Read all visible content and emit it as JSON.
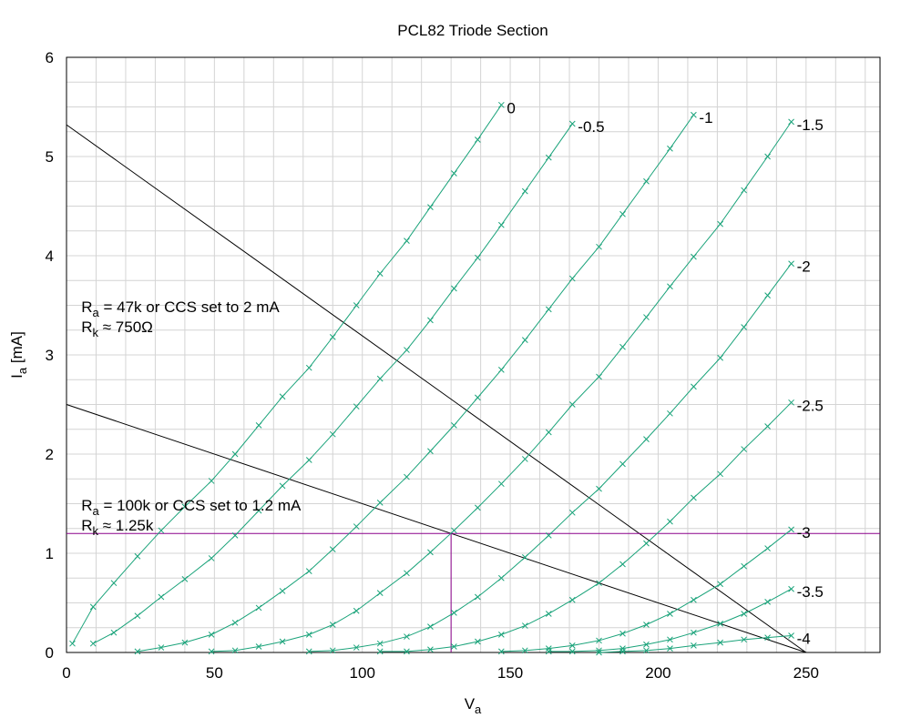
{
  "chart_data": {
    "type": "line",
    "title": "PCL82 Triode Section",
    "xlabel": "V",
    "xlabel_sub": "a",
    "ylabel": "I",
    "ylabel_sub": "a",
    "ylabel_suffix": " [mA]",
    "xlim": [
      0,
      275
    ],
    "ylim": [
      0,
      6
    ],
    "xticks": [
      0,
      50,
      100,
      150,
      200,
      250
    ],
    "yticks": [
      0,
      1,
      2,
      3,
      4,
      5,
      6
    ],
    "grid": true,
    "curve_color": "#1aa37a",
    "series": [
      {
        "name": "0",
        "points": [
          [
            2,
            0.09
          ],
          [
            9,
            0.46
          ],
          [
            16,
            0.7
          ],
          [
            24,
            0.97
          ],
          [
            32,
            1.23
          ],
          [
            40,
            1.47
          ],
          [
            49,
            1.73
          ],
          [
            57,
            2.0
          ],
          [
            65,
            2.29
          ],
          [
            73,
            2.58
          ],
          [
            82,
            2.87
          ],
          [
            90,
            3.18
          ],
          [
            98,
            3.5
          ],
          [
            106,
            3.82
          ],
          [
            115,
            4.15
          ],
          [
            123,
            4.49
          ],
          [
            131,
            4.83
          ],
          [
            139,
            5.17
          ],
          [
            147,
            5.52
          ]
        ]
      },
      {
        "name": "-0.5",
        "points": [
          [
            9,
            0.09
          ],
          [
            16,
            0.2
          ],
          [
            24,
            0.37
          ],
          [
            32,
            0.56
          ],
          [
            40,
            0.74
          ],
          [
            49,
            0.95
          ],
          [
            57,
            1.18
          ],
          [
            65,
            1.43
          ],
          [
            73,
            1.68
          ],
          [
            82,
            1.94
          ],
          [
            90,
            2.2
          ],
          [
            98,
            2.48
          ],
          [
            106,
            2.76
          ],
          [
            115,
            3.05
          ],
          [
            123,
            3.35
          ],
          [
            131,
            3.67
          ],
          [
            139,
            3.98
          ],
          [
            147,
            4.31
          ],
          [
            155,
            4.65
          ],
          [
            163,
            4.99
          ],
          [
            171,
            5.33
          ]
        ]
      },
      {
        "name": "-1",
        "points": [
          [
            24,
            0.01
          ],
          [
            32,
            0.05
          ],
          [
            40,
            0.1
          ],
          [
            49,
            0.18
          ],
          [
            57,
            0.3
          ],
          [
            65,
            0.45
          ],
          [
            73,
            0.62
          ],
          [
            82,
            0.82
          ],
          [
            90,
            1.04
          ],
          [
            98,
            1.27
          ],
          [
            106,
            1.51
          ],
          [
            115,
            1.77
          ],
          [
            123,
            2.03
          ],
          [
            131,
            2.29
          ],
          [
            139,
            2.57
          ],
          [
            147,
            2.85
          ],
          [
            155,
            3.15
          ],
          [
            163,
            3.46
          ],
          [
            171,
            3.77
          ],
          [
            180,
            4.09
          ],
          [
            188,
            4.42
          ],
          [
            196,
            4.75
          ],
          [
            204,
            5.08
          ],
          [
            212,
            5.42
          ]
        ]
      },
      {
        "name": "-1.5",
        "points": [
          [
            49,
            0.01
          ],
          [
            57,
            0.02
          ],
          [
            65,
            0.06
          ],
          [
            73,
            0.11
          ],
          [
            82,
            0.18
          ],
          [
            90,
            0.28
          ],
          [
            98,
            0.42
          ],
          [
            106,
            0.6
          ],
          [
            115,
            0.8
          ],
          [
            123,
            1.01
          ],
          [
            131,
            1.23
          ],
          [
            139,
            1.46
          ],
          [
            147,
            1.7
          ],
          [
            155,
            1.95
          ],
          [
            163,
            2.22
          ],
          [
            171,
            2.5
          ],
          [
            180,
            2.78
          ],
          [
            188,
            3.08
          ],
          [
            196,
            3.38
          ],
          [
            204,
            3.69
          ],
          [
            212,
            3.99
          ],
          [
            221,
            4.32
          ],
          [
            229,
            4.66
          ],
          [
            237,
            5.0
          ],
          [
            245,
            5.35
          ]
        ]
      },
      {
        "name": "-2",
        "points": [
          [
            82,
            0.01
          ],
          [
            90,
            0.02
          ],
          [
            98,
            0.05
          ],
          [
            106,
            0.09
          ],
          [
            115,
            0.16
          ],
          [
            123,
            0.26
          ],
          [
            131,
            0.4
          ],
          [
            139,
            0.56
          ],
          [
            147,
            0.75
          ],
          [
            155,
            0.96
          ],
          [
            163,
            1.18
          ],
          [
            171,
            1.41
          ],
          [
            180,
            1.65
          ],
          [
            188,
            1.9
          ],
          [
            196,
            2.15
          ],
          [
            204,
            2.41
          ],
          [
            212,
            2.68
          ],
          [
            221,
            2.97
          ],
          [
            229,
            3.28
          ],
          [
            237,
            3.6
          ],
          [
            245,
            3.92
          ]
        ]
      },
      {
        "name": "-2.5",
        "points": [
          [
            106,
            0.01
          ],
          [
            115,
            0.01
          ],
          [
            123,
            0.03
          ],
          [
            131,
            0.06
          ],
          [
            139,
            0.11
          ],
          [
            147,
            0.18
          ],
          [
            155,
            0.27
          ],
          [
            163,
            0.39
          ],
          [
            171,
            0.53
          ],
          [
            180,
            0.7
          ],
          [
            188,
            0.89
          ],
          [
            196,
            1.1
          ],
          [
            204,
            1.32
          ],
          [
            212,
            1.56
          ],
          [
            221,
            1.8
          ],
          [
            229,
            2.05
          ],
          [
            237,
            2.28
          ],
          [
            245,
            2.52
          ]
        ]
      },
      {
        "name": "-3",
        "points": [
          [
            147,
            0.01
          ],
          [
            155,
            0.02
          ],
          [
            163,
            0.04
          ],
          [
            171,
            0.07
          ],
          [
            180,
            0.12
          ],
          [
            188,
            0.19
          ],
          [
            196,
            0.28
          ],
          [
            204,
            0.39
          ],
          [
            212,
            0.53
          ],
          [
            221,
            0.69
          ],
          [
            229,
            0.87
          ],
          [
            237,
            1.05
          ],
          [
            245,
            1.24
          ]
        ]
      },
      {
        "name": "-3.5",
        "points": [
          [
            163,
            0.01
          ],
          [
            171,
            0.01
          ],
          [
            180,
            0.02
          ],
          [
            188,
            0.04
          ],
          [
            196,
            0.08
          ],
          [
            204,
            0.13
          ],
          [
            212,
            0.2
          ],
          [
            221,
            0.29
          ],
          [
            229,
            0.39
          ],
          [
            237,
            0.51
          ],
          [
            245,
            0.64
          ]
        ]
      },
      {
        "name": "-4",
        "points": [
          [
            180,
            0.0
          ],
          [
            188,
            0.01
          ],
          [
            196,
            0.02
          ],
          [
            204,
            0.04
          ],
          [
            212,
            0.07
          ],
          [
            221,
            0.1
          ],
          [
            229,
            0.13
          ],
          [
            237,
            0.15
          ],
          [
            245,
            0.17
          ]
        ]
      }
    ],
    "load_lines": [
      {
        "points": [
          [
            0,
            5.32
          ],
          [
            250,
            0
          ]
        ],
        "color": "#000000"
      },
      {
        "points": [
          [
            0,
            2.5
          ],
          [
            250,
            0
          ]
        ],
        "color": "#000000"
      }
    ],
    "operating_point": {
      "x": 130,
      "y": 1.2,
      "color": "#8b008b"
    },
    "annotations": [
      {
        "id": "annot-47k",
        "x": 5,
        "lines": [
          {
            "base": "R",
            "sub": "a",
            "rest": " = 47k or CCS set to 2 mA",
            "y": 3.43
          },
          {
            "base": "R",
            "sub": "k",
            "rest": " ≈ 750Ω",
            "y": 3.23
          }
        ]
      },
      {
        "id": "annot-100k",
        "x": 5,
        "lines": [
          {
            "base": "R",
            "sub": "a",
            "rest": " = 100k or CCS set to 1.2 mA",
            "y": 1.43
          },
          {
            "base": "R",
            "sub": "k",
            "rest": " ≈ 1.25k",
            "y": 1.23
          }
        ]
      }
    ]
  }
}
